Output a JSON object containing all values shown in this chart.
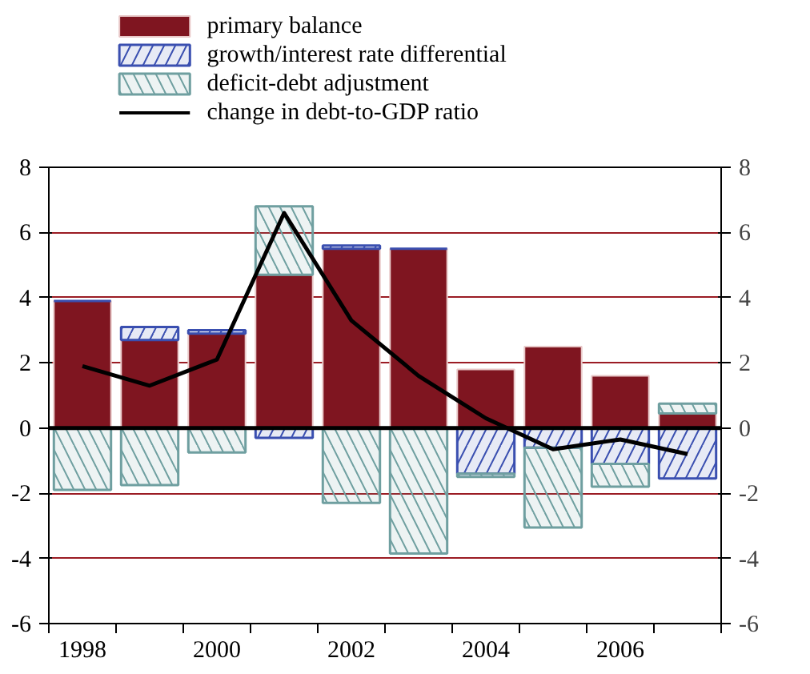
{
  "chart_data": {
    "type": "bar",
    "stacked": true,
    "categories": [
      "1998",
      null,
      "2000",
      null,
      "2002",
      null,
      "2004",
      null,
      "2006",
      null
    ],
    "series": [
      {
        "name": "primary balance",
        "color": "#7f1520",
        "values": [
          3.9,
          2.7,
          2.9,
          4.7,
          5.5,
          5.5,
          1.8,
          2.5,
          1.6,
          0.45
        ]
      },
      {
        "name": "growth/interest rate differential",
        "color": "#3a4fb0",
        "values": [
          0,
          0.4,
          0.1,
          -0.3,
          0.1,
          0,
          -1.4,
          -0.6,
          -1.1,
          -1.55
        ]
      },
      {
        "name": "deficit-debt adjustment",
        "color": "#6f9fa0",
        "values": [
          -1.9,
          -1.75,
          -0.75,
          2.1,
          -2.3,
          -3.85,
          -0.1,
          -2.45,
          -0.7,
          0.3
        ]
      },
      {
        "name": "change in debt-to-GDP ratio",
        "type": "line",
        "color": "#000000",
        "values": [
          1.9,
          1.3,
          2.1,
          6.6,
          3.3,
          1.6,
          0.3,
          -0.65,
          -0.35,
          -0.8
        ]
      }
    ],
    "ylim": [
      -6,
      8
    ],
    "yticks": [
      -6,
      -4,
      -2,
      0,
      2,
      4,
      6,
      8
    ],
    "y2lim": [
      -6,
      8
    ],
    "y2ticks": [
      -6,
      -4,
      -2,
      0,
      2,
      4,
      6,
      8
    ],
    "grid": "y",
    "legend": "top",
    "ref_lines": [
      {
        "axis": "y",
        "value": 0,
        "color": "#000000"
      }
    ]
  }
}
